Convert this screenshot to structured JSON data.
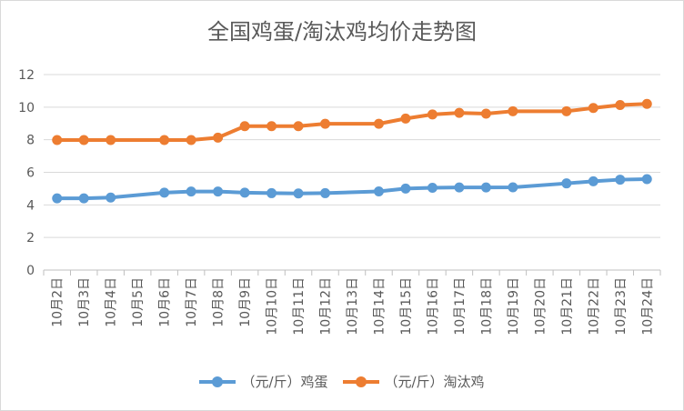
{
  "chart_data": {
    "type": "line",
    "title": "全国鸡蛋/淘汰鸡均价走势图",
    "categories": [
      "10月2日",
      "10月3日",
      "10月4日",
      "10月5日",
      "10月6日",
      "10月7日",
      "10月8日",
      "10月9日",
      "10月10日",
      "10月11日",
      "10月12日",
      "10月13日",
      "10月14日",
      "10月15日",
      "10月16日",
      "10月17日",
      "10月18日",
      "10月19日",
      "10月20日",
      "10月21日",
      "10月22日",
      "10月23日",
      "10月24日"
    ],
    "series": [
      {
        "name": "（元/斤）鸡蛋",
        "color": "#5b9bd5",
        "values": [
          4.4,
          4.4,
          4.45,
          null,
          4.75,
          4.82,
          4.82,
          4.75,
          4.72,
          4.7,
          4.72,
          null,
          4.83,
          5.0,
          5.05,
          5.07,
          5.07,
          5.08,
          null,
          5.32,
          5.45,
          5.55,
          5.58
        ]
      },
      {
        "name": "（元/斤）淘汰鸡",
        "color": "#ed7d31",
        "values": [
          7.98,
          7.98,
          7.98,
          null,
          7.98,
          7.98,
          8.13,
          8.83,
          8.83,
          8.83,
          8.98,
          null,
          8.98,
          9.3,
          9.55,
          9.65,
          9.6,
          9.75,
          null,
          9.75,
          9.95,
          10.13,
          10.2
        ]
      }
    ],
    "yticks": [
      "0",
      "2",
      "4",
      "6",
      "8",
      "10",
      "12"
    ],
    "ylim": [
      0,
      12
    ],
    "grid": true,
    "legend_position": "bottom"
  }
}
